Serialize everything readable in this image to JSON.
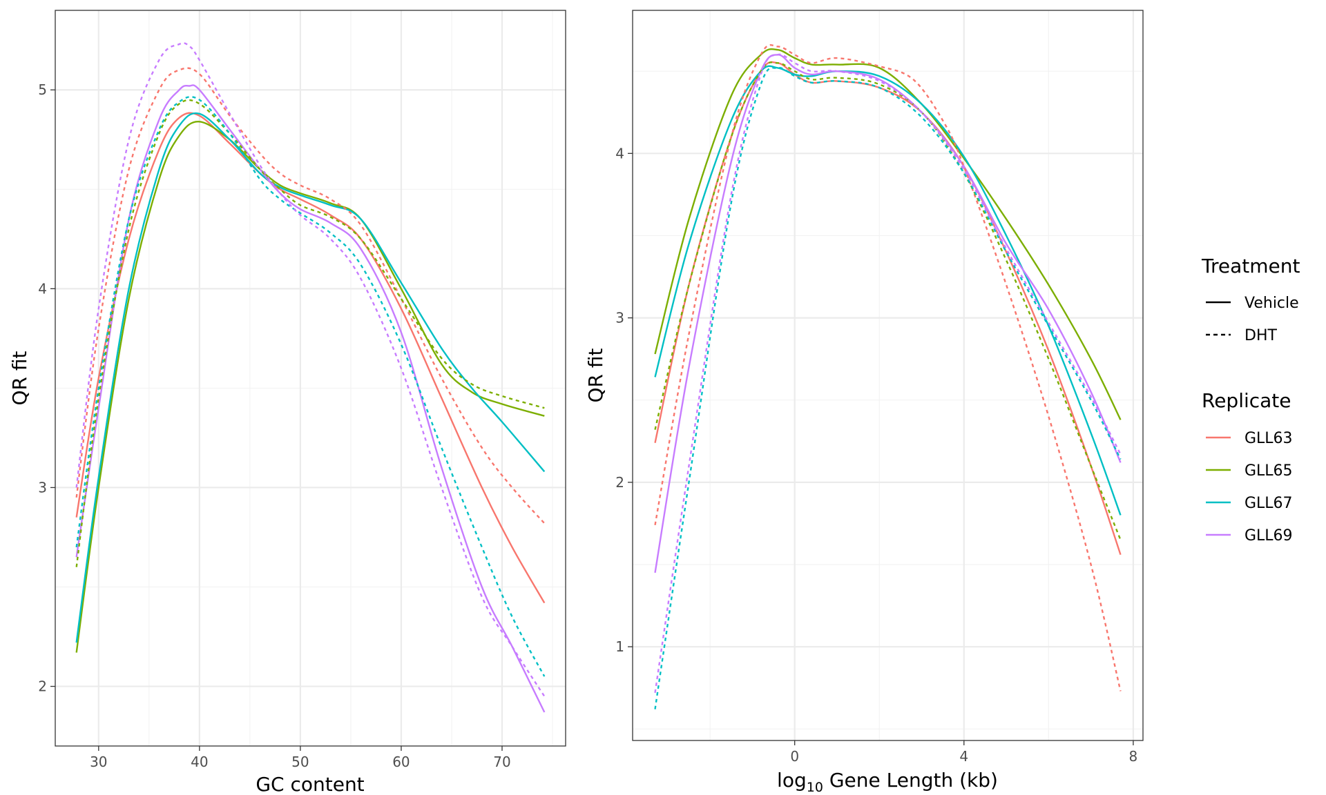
{
  "chart_data": [
    {
      "type": "line",
      "xlabel": "GC content",
      "ylabel": "QR fit",
      "xlim": [
        25.7,
        76.3
      ],
      "ylim": [
        1.7,
        5.4
      ],
      "x_major_ticks": [
        30,
        40,
        50,
        60,
        70
      ],
      "y_major_ticks": [
        2,
        3,
        4,
        5
      ],
      "x_tick_labels": [
        "30",
        "40",
        "50",
        "60",
        "70"
      ],
      "y_tick_labels": [
        "2",
        "3",
        "4",
        "5"
      ],
      "grid": true,
      "series": [
        {
          "name": "GLL63",
          "treatment": "Vehicle",
          "x": [
            27.8,
            30,
            33,
            36,
            38,
            40,
            43,
            46,
            48,
            50,
            53,
            56,
            60,
            64,
            68,
            71,
            74.2
          ],
          "y": [
            2.85,
            3.55,
            4.25,
            4.7,
            4.86,
            4.87,
            4.73,
            4.58,
            4.5,
            4.45,
            4.37,
            4.25,
            3.9,
            3.45,
            3.0,
            2.7,
            2.42
          ]
        },
        {
          "name": "GLL65",
          "treatment": "Vehicle",
          "x": [
            27.8,
            30,
            33,
            36,
            38,
            40,
            43,
            46,
            48,
            50,
            53,
            56,
            60,
            64,
            67,
            70,
            74.2
          ],
          "y": [
            2.17,
            3.0,
            3.95,
            4.55,
            4.77,
            4.84,
            4.75,
            4.6,
            4.52,
            4.48,
            4.43,
            4.35,
            4.0,
            3.62,
            3.48,
            3.42,
            3.36
          ]
        },
        {
          "name": "GLL67",
          "treatment": "Vehicle",
          "x": [
            27.8,
            30,
            33,
            36,
            38,
            40,
            43,
            46,
            48,
            50,
            53,
            56,
            60,
            64,
            67,
            70,
            74.2
          ],
          "y": [
            2.22,
            3.05,
            4.0,
            4.6,
            4.82,
            4.88,
            4.75,
            4.58,
            4.51,
            4.47,
            4.42,
            4.35,
            4.03,
            3.7,
            3.5,
            3.33,
            3.08
          ]
        },
        {
          "name": "GLL69",
          "treatment": "Vehicle",
          "x": [
            27.8,
            30,
            33,
            36,
            38,
            39,
            40,
            43,
            46,
            48,
            50,
            53,
            56,
            60,
            64,
            68,
            71,
            74.2
          ],
          "y": [
            2.65,
            3.4,
            4.35,
            4.85,
            5.0,
            5.02,
            5.0,
            4.8,
            4.6,
            4.48,
            4.4,
            4.33,
            4.2,
            3.78,
            3.1,
            2.5,
            2.2,
            1.87
          ]
        },
        {
          "name": "GLL63",
          "treatment": "DHT",
          "x": [
            27.8,
            30,
            33,
            36,
            38,
            40,
            43,
            46,
            48,
            50,
            53,
            56,
            60,
            64,
            68,
            71,
            74.2
          ],
          "y": [
            2.95,
            3.8,
            4.6,
            5.0,
            5.1,
            5.08,
            4.87,
            4.68,
            4.58,
            4.52,
            4.45,
            4.32,
            3.95,
            3.55,
            3.2,
            3.0,
            2.82
          ]
        },
        {
          "name": "GLL65",
          "treatment": "DHT",
          "x": [
            27.8,
            30,
            33,
            36,
            38,
            40,
            43,
            46,
            48,
            50,
            53,
            56,
            60,
            64,
            67,
            70,
            74.2
          ],
          "y": [
            2.6,
            3.45,
            4.3,
            4.78,
            4.93,
            4.93,
            4.78,
            4.6,
            4.5,
            4.42,
            4.36,
            4.25,
            3.95,
            3.65,
            3.52,
            3.46,
            3.4
          ]
        },
        {
          "name": "GLL67",
          "treatment": "DHT",
          "x": [
            27.8,
            30,
            33,
            36,
            38,
            40,
            43,
            46,
            48,
            50,
            53,
            56,
            60,
            64,
            68,
            71,
            74.2
          ],
          "y": [
            2.7,
            3.5,
            4.35,
            4.8,
            4.94,
            4.95,
            4.78,
            4.55,
            4.45,
            4.38,
            4.28,
            4.12,
            3.72,
            3.2,
            2.7,
            2.35,
            2.05
          ]
        },
        {
          "name": "GLL69",
          "treatment": "DHT",
          "x": [
            27.8,
            30,
            33,
            36,
            38,
            39,
            40,
            43,
            46,
            48,
            50,
            53,
            56,
            60,
            64,
            68,
            71,
            74.2
          ],
          "y": [
            3.0,
            3.9,
            4.75,
            5.15,
            5.23,
            5.22,
            5.15,
            4.88,
            4.62,
            4.48,
            4.37,
            4.25,
            4.05,
            3.6,
            3.0,
            2.45,
            2.2,
            1.95
          ]
        }
      ]
    },
    {
      "type": "line",
      "xlabel": "log10 Gene Length (kb)",
      "ylabel": "QR fit",
      "xlim": [
        -3.83,
        8.23
      ],
      "ylim": [
        0.43,
        4.87
      ],
      "x_major_ticks": [
        0,
        4,
        8
      ],
      "y_major_ticks": [
        1,
        2,
        3,
        4
      ],
      "x_tick_labels": [
        "0",
        "4",
        "8"
      ],
      "y_tick_labels": [
        "1",
        "2",
        "3",
        "4"
      ],
      "grid": true,
      "series": [
        {
          "name": "GLL63",
          "treatment": "Vehicle",
          "x": [
            -3.3,
            -2.5,
            -1.5,
            -0.8,
            -0.4,
            0.0,
            0.4,
            1.0,
            2.0,
            3.0,
            4.0,
            5.0,
            6.0,
            7.0,
            7.7
          ],
          "y": [
            2.24,
            3.2,
            4.1,
            4.5,
            4.55,
            4.48,
            4.43,
            4.44,
            4.4,
            4.25,
            3.92,
            3.4,
            2.8,
            2.1,
            1.56
          ]
        },
        {
          "name": "GLL65",
          "treatment": "Vehicle",
          "x": [
            -3.3,
            -2.5,
            -1.5,
            -0.8,
            -0.4,
            0.0,
            0.4,
            1.0,
            2.0,
            3.0,
            4.0,
            5.0,
            6.0,
            7.0,
            7.7
          ],
          "y": [
            2.78,
            3.6,
            4.35,
            4.6,
            4.63,
            4.58,
            4.54,
            4.54,
            4.52,
            4.3,
            3.97,
            3.6,
            3.2,
            2.75,
            2.38
          ]
        },
        {
          "name": "GLL67",
          "treatment": "Vehicle",
          "x": [
            -3.3,
            -2.5,
            -1.5,
            -0.8,
            -0.4,
            0.0,
            0.4,
            1.0,
            2.0,
            3.0,
            4.0,
            5.0,
            6.0,
            7.0,
            7.7
          ],
          "y": [
            2.64,
            3.45,
            4.2,
            4.5,
            4.52,
            4.48,
            4.47,
            4.5,
            4.47,
            4.3,
            3.98,
            3.5,
            2.95,
            2.3,
            1.8
          ]
        },
        {
          "name": "GLL69",
          "treatment": "Vehicle",
          "x": [
            -3.3,
            -2.5,
            -1.5,
            -0.8,
            -0.4,
            0.0,
            0.4,
            1.0,
            2.0,
            3.0,
            4.0,
            5.0,
            6.0,
            7.0,
            7.7
          ],
          "y": [
            1.45,
            2.7,
            3.95,
            4.5,
            4.6,
            4.52,
            4.48,
            4.5,
            4.45,
            4.25,
            3.92,
            3.45,
            3.05,
            2.55,
            2.12
          ]
        },
        {
          "name": "GLL63",
          "treatment": "DHT",
          "x": [
            -3.3,
            -2.5,
            -1.5,
            -0.8,
            -0.4,
            0.0,
            0.4,
            1.0,
            2.0,
            2.8,
            3.5,
            4.0,
            5.0,
            6.0,
            7.0,
            7.7
          ],
          "y": [
            1.74,
            2.9,
            4.1,
            4.6,
            4.65,
            4.6,
            4.55,
            4.58,
            4.53,
            4.45,
            4.2,
            3.92,
            3.2,
            2.4,
            1.5,
            0.73
          ]
        },
        {
          "name": "GLL65",
          "treatment": "DHT",
          "x": [
            -3.3,
            -2.5,
            -1.5,
            -0.8,
            -0.4,
            0.0,
            0.4,
            1.0,
            2.0,
            3.0,
            4.0,
            5.0,
            6.0,
            7.0,
            7.7
          ],
          "y": [
            2.32,
            3.2,
            4.1,
            4.5,
            4.55,
            4.5,
            4.45,
            4.46,
            4.42,
            4.25,
            3.88,
            3.35,
            2.75,
            2.1,
            1.65
          ]
        },
        {
          "name": "GLL67",
          "treatment": "DHT",
          "x": [
            -3.3,
            -2.5,
            -1.5,
            -0.8,
            -0.4,
            0.0,
            0.4,
            1.0,
            2.0,
            3.0,
            4.0,
            5.0,
            6.0,
            7.0,
            7.7
          ],
          "y": [
            0.62,
            2.0,
            3.7,
            4.42,
            4.52,
            4.47,
            4.43,
            4.44,
            4.4,
            4.22,
            3.88,
            3.4,
            2.95,
            2.5,
            2.14
          ]
        },
        {
          "name": "GLL69",
          "treatment": "DHT",
          "x": [
            -3.3,
            -2.5,
            -1.5,
            -0.8,
            -0.4,
            0.0,
            0.4,
            1.0,
            2.0,
            3.0,
            4.0,
            5.0,
            6.0,
            7.0,
            7.7
          ],
          "y": [
            0.72,
            2.1,
            3.75,
            4.48,
            4.6,
            4.55,
            4.5,
            4.5,
            4.44,
            4.25,
            3.9,
            3.42,
            2.97,
            2.52,
            2.17
          ]
        }
      ]
    }
  ],
  "legend": {
    "placement": "right",
    "treatment": {
      "title": "Treatment",
      "items": [
        {
          "label": "Vehicle",
          "linetype": "solid"
        },
        {
          "label": "DHT",
          "linetype": "dashed"
        }
      ]
    },
    "replicate": {
      "title": "Replicate",
      "items": [
        {
          "label": "GLL63",
          "color": "#F8766D"
        },
        {
          "label": "GLL65",
          "color": "#7CAE00"
        },
        {
          "label": "GLL67",
          "color": "#00BFC4"
        },
        {
          "label": "GLL69",
          "color": "#C77CFF"
        }
      ]
    }
  },
  "colors": {
    "GLL63": "#F8766D",
    "GLL65": "#7CAE00",
    "GLL67": "#00BFC4",
    "GLL69": "#C77CFF"
  }
}
